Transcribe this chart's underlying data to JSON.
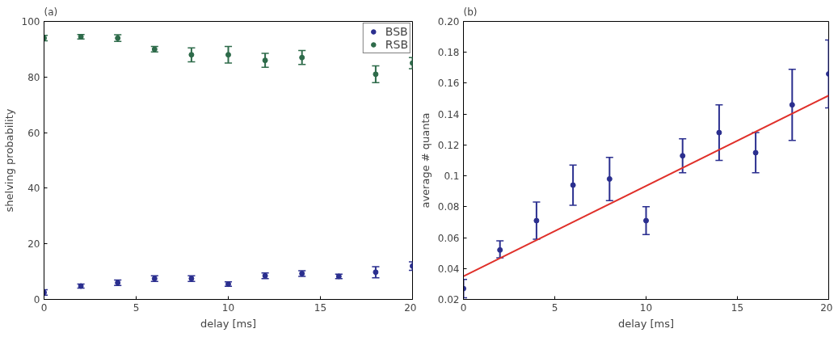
{
  "chart_data": [
    {
      "type": "scatter",
      "title": "(a)",
      "xlabel": "delay [ms]",
      "ylabel": "shelving probability",
      "x": [
        0,
        2,
        4,
        6,
        8,
        10,
        12,
        14,
        16,
        18,
        20
      ],
      "xlim": [
        0,
        20
      ],
      "xticks": [
        0,
        5,
        10,
        15,
        20
      ],
      "ylim": [
        0,
        100
      ],
      "yticks": [
        0,
        20,
        40,
        60,
        80,
        100
      ],
      "grid": false,
      "legend": "top right",
      "marker": "circle",
      "series": [
        {
          "name": "BSB",
          "color": "#2b2f8f",
          "values": [
            2.5,
            4.8,
            6,
            7.5,
            7.5,
            5.5,
            8.5,
            9.3,
            8.3,
            9.8,
            12
          ],
          "errors": [
            1,
            0.7,
            1,
            1,
            1,
            0.8,
            1,
            1,
            0.8,
            2,
            1.5
          ]
        },
        {
          "name": "RSB",
          "color": "#2e6b4a",
          "values": [
            94,
            94.5,
            94,
            90,
            88,
            88,
            86,
            87,
            null,
            81,
            85
          ],
          "errors": [
            1,
            0.8,
            1.2,
            1,
            2.5,
            3,
            2.5,
            2.5,
            null,
            3,
            2
          ]
        }
      ]
    },
    {
      "type": "scatter",
      "title": "(b)",
      "xlabel": "delay [ms]",
      "ylabel": "average # quanta",
      "x": [
        0,
        2,
        4,
        6,
        8,
        10,
        12,
        14,
        16,
        18,
        20
      ],
      "xlim": [
        0,
        20
      ],
      "xticks": [
        0,
        5,
        10,
        15,
        20
      ],
      "ylim": [
        0.02,
        0.2
      ],
      "yticks": [
        0.02,
        0.04,
        0.06,
        0.08,
        0.1,
        0.12,
        0.14,
        0.16,
        0.18,
        {
          "value": 0.2,
          "label": "0.20"
        }
      ],
      "grid": false,
      "legend": false,
      "marker": "circle",
      "series": [
        {
          "color": "#2b2f8f",
          "values": [
            0.027,
            0.052,
            0.071,
            0.094,
            0.098,
            0.071,
            0.113,
            0.128,
            0.115,
            0.146,
            0.166
          ],
          "errors": [
            [
              0.021,
              0.033
            ],
            [
              0.047,
              0.058
            ],
            [
              0.059,
              0.083
            ],
            [
              0.081,
              0.107
            ],
            [
              0.084,
              0.112
            ],
            [
              0.062,
              0.08
            ],
            [
              0.102,
              0.124
            ],
            [
              0.11,
              0.146
            ],
            [
              0.102,
              0.128
            ],
            [
              0.123,
              0.169
            ],
            [
              0.144,
              0.188
            ]
          ]
        },
        {
          "type": "line",
          "marker": "none",
          "color": "#e0302a",
          "x": [
            0,
            20
          ],
          "values": [
            0.035,
            0.152
          ]
        }
      ]
    }
  ]
}
